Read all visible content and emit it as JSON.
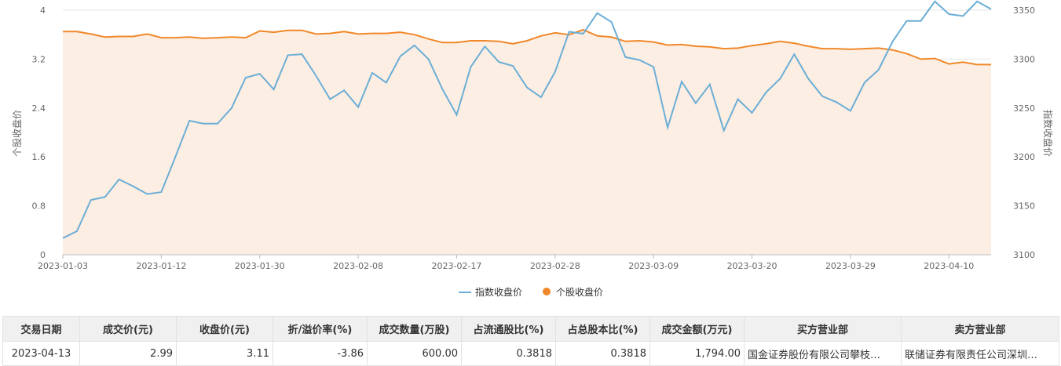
{
  "chart_data": {
    "type": "line+area",
    "y_left": {
      "label": "个股收盘价",
      "ticks": [
        "4",
        "3.2",
        "2.4",
        "1.6",
        "0.8",
        "0"
      ],
      "range": [
        0,
        4
      ]
    },
    "y_right": {
      "label": "指数收盘价",
      "ticks": [
        "3350",
        "3300",
        "3250",
        "3200",
        "3150",
        "3100"
      ],
      "range": [
        3100,
        3350
      ]
    },
    "x_labels": [
      "2023-01-03",
      "2023-01-12",
      "2023-01-30",
      "2023-02-08",
      "2023-02-17",
      "2023-02-28",
      "2023-03-09",
      "2023-03-20",
      "2023-03-29",
      "2023-04-10"
    ],
    "x_label_index": [
      0,
      7,
      14,
      21,
      28,
      35,
      42,
      49,
      56,
      63
    ],
    "n_points": 67,
    "legend": [
      "指数收盘价",
      "个股收盘价"
    ],
    "legend_position": "bottom-center",
    "series": [
      {
        "name": "指数收盘价",
        "axis": "right",
        "color": "#6baed6",
        "values": [
          3117,
          3124,
          3156,
          3159,
          3177,
          3170,
          3162,
          3164,
          3200,
          3237,
          3234,
          3234,
          3250,
          3281,
          3285,
          3269,
          3304,
          3305,
          3283,
          3259,
          3268,
          3251,
          3286,
          3276,
          3303,
          3314,
          3300,
          3269,
          3243,
          3292,
          3313,
          3297,
          3293,
          3271,
          3261,
          3287,
          3328,
          3326,
          3347,
          3338,
          3302,
          3299,
          3292,
          3230,
          3277,
          3255,
          3274,
          3227,
          3259,
          3245,
          3266,
          3280,
          3305,
          3280,
          3262,
          3256,
          3247,
          3276,
          3289,
          3318,
          3339,
          3339,
          3359,
          3346,
          3344,
          3359,
          3351
        ]
      },
      {
        "name": "个股收盘价",
        "axis": "left",
        "color": "#f0882a",
        "fill": "#fdeee3",
        "values": [
          3.65,
          3.65,
          3.61,
          3.56,
          3.57,
          3.57,
          3.61,
          3.55,
          3.55,
          3.56,
          3.54,
          3.55,
          3.56,
          3.55,
          3.66,
          3.64,
          3.67,
          3.67,
          3.61,
          3.62,
          3.65,
          3.61,
          3.62,
          3.62,
          3.64,
          3.6,
          3.53,
          3.47,
          3.47,
          3.5,
          3.5,
          3.49,
          3.45,
          3.5,
          3.58,
          3.63,
          3.6,
          3.68,
          3.58,
          3.56,
          3.49,
          3.5,
          3.48,
          3.43,
          3.44,
          3.41,
          3.4,
          3.37,
          3.38,
          3.42,
          3.45,
          3.49,
          3.46,
          3.41,
          3.37,
          3.37,
          3.36,
          3.37,
          3.38,
          3.35,
          3.29,
          3.2,
          3.21,
          3.12,
          3.15,
          3.11,
          3.11
        ]
      }
    ]
  },
  "table": {
    "headers": [
      "交易日期",
      "成交价(元)",
      "收盘价(元)",
      "折/溢价率(%)",
      "成交数量(万股)",
      "占流通股比(%)",
      "占总股本比(%)",
      "成交金额(万元)",
      "买方营业部",
      "卖方营业部"
    ],
    "rows": [
      [
        "2023-04-13",
        "2.99",
        "3.11",
        "-3.86",
        "600.00",
        "0.3818",
        "0.3818",
        "1,794.00",
        "国金证券股份有限公司攀枝…",
        "联储证券有限责任公司深圳…"
      ]
    ]
  }
}
